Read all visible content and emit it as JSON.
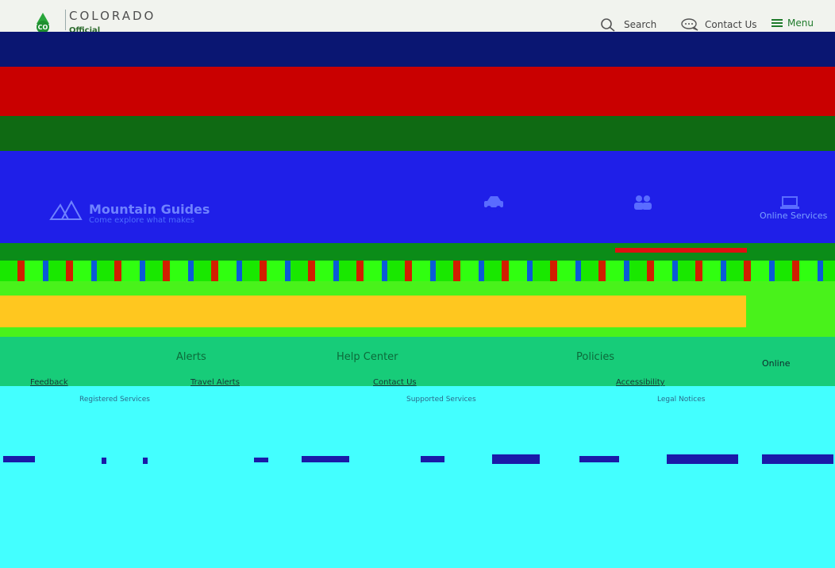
{
  "header": {
    "logo_word": "COLORADO",
    "logo_badge": "CO",
    "logo_sub": "Official",
    "search_label": "Search",
    "contact_label": "Contact Us",
    "menu_label": "Menu",
    "icons": {
      "search": "search-icon",
      "contact": "chat-bubble-icon",
      "menu": "hamburger-menu-icon",
      "logo": "colorado-mountain-logo-icon"
    },
    "colors": {
      "accent": "#1e7a2a",
      "text": "#444444"
    }
  },
  "hero": {
    "services": [
      {
        "title": "Mountain Guides",
        "description": "Come explore what makes",
        "icon": "mountain-icon"
      },
      {
        "title": "",
        "description": "",
        "icon": "car-icon"
      },
      {
        "title": "",
        "description": "",
        "icon": "people-icon"
      },
      {
        "title": "Online Services",
        "description": "",
        "icon": "laptop-icon"
      }
    ]
  },
  "footer": {
    "columns": [
      {
        "heading": "",
        "link": "Feedback",
        "sub": "Registered Services"
      },
      {
        "heading": "Alerts",
        "link": "Travel Alerts",
        "sub": ""
      },
      {
        "heading": "Help Center",
        "link": "Contact Us",
        "sub": "Supported Services"
      },
      {
        "heading": "Policies",
        "link": "Accessibility",
        "sub": "Legal Notices"
      }
    ],
    "online_label": "Online"
  }
}
